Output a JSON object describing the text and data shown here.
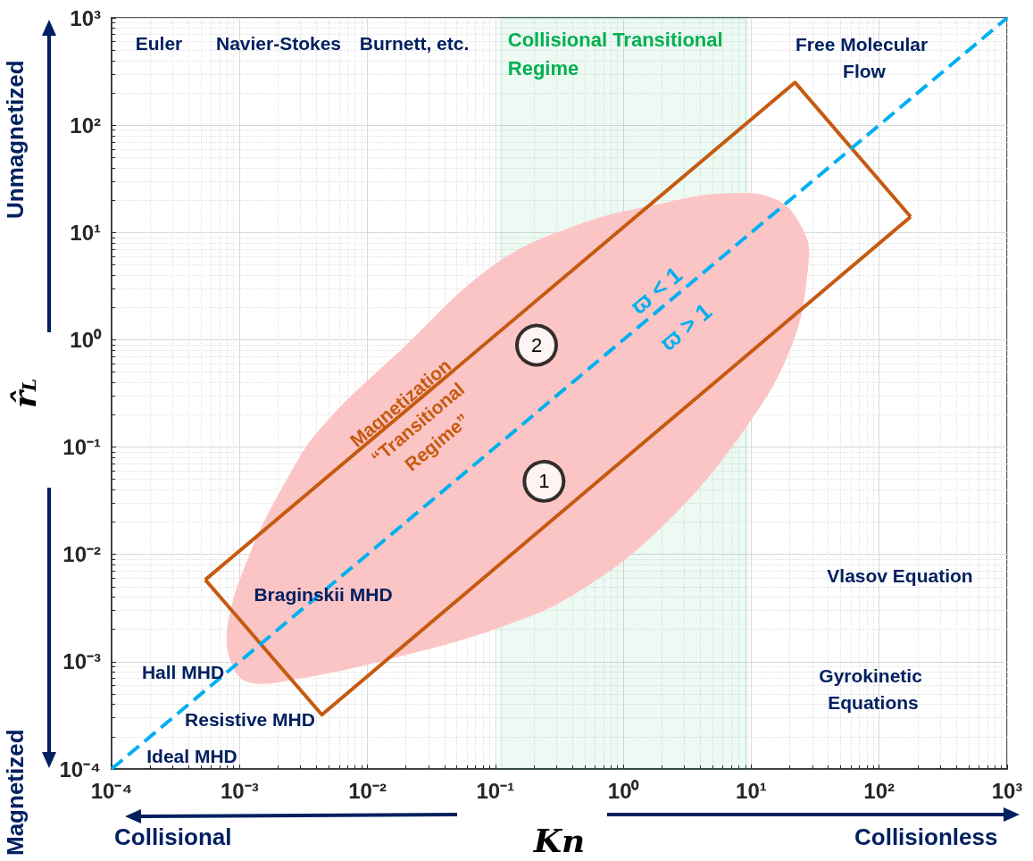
{
  "chart_data": {
    "type": "line",
    "xlabel": "Kn",
    "ylabel": "r̂$_{L}$",
    "xlim": [
      0.0001,
      1000
    ],
    "ylim": [
      0.0001,
      1000
    ],
    "xticks": [
      {
        "value": 0.0001,
        "label": "10⁻⁴"
      },
      {
        "value": 0.001,
        "label": "10⁻³"
      },
      {
        "value": 0.01,
        "label": "10⁻²"
      },
      {
        "value": 0.1,
        "label": "10⁻¹"
      },
      {
        "value": 1,
        "label": "10⁰"
      },
      {
        "value": 10,
        "label": "10¹"
      },
      {
        "value": 100,
        "label": "10²"
      },
      {
        "value": 1000,
        "label": "10³"
      }
    ],
    "yticks": [
      {
        "value": 0.0001,
        "label": "10⁻⁴"
      },
      {
        "value": 0.001,
        "label": "10⁻³"
      },
      {
        "value": 0.01,
        "label": "10⁻²"
      },
      {
        "value": 0.1,
        "label": "10⁻¹"
      },
      {
        "value": 1,
        "label": "10⁰"
      },
      {
        "value": 10,
        "label": "10¹"
      },
      {
        "value": 100,
        "label": "10²"
      },
      {
        "value": 1000,
        "label": "10³"
      }
    ],
    "log": "xy",
    "grid": true,
    "series": [
      {
        "type": "area",
        "color": "#fcc5c5",
        "x": [
          0.00081,
          0.0012,
          0.0023,
          0.0043,
          0.019,
          0.1,
          0.46,
          1.75,
          6,
          16,
          26,
          28,
          21,
          9,
          2,
          0.42,
          0.11,
          0.017,
          0.0028,
          0.0012,
          0.00087
        ],
        "values": [
          0.0022,
          0.01,
          0.048,
          0.15,
          0.84,
          5.1,
          12,
          18,
          23,
          20,
          10,
          5.1,
          0.92,
          0.15,
          0.018,
          0.0043,
          0.0021,
          0.0011,
          0.00069,
          0.00064,
          0.00094
        ]
      },
      {
        "color": "#c55a11",
        "line_style": "solid",
        "marker": "none",
        "x": [
          0.00054,
          22,
          176
        ],
        "values": [
          0.0058,
          250,
          14
        ]
      },
      {
        "color": "#c55a11",
        "line_style": "solid",
        "marker": "none",
        "x": [
          0.00054,
          0.0044,
          176
        ],
        "values": [
          0.0058,
          0.00032,
          14
        ]
      },
      {
        "color": "#00b0f0",
        "line_style": "dashed",
        "marker": "none",
        "x": [
          0.0001,
          1000
        ],
        "values": [
          0.0001,
          1000
        ]
      },
      {
        "type": "scatter",
        "color": "#ffffff",
        "marker": "circle",
        "x": [
          0.21,
          0.24
        ],
        "values": [
          0.89,
          0.048
        ]
      }
    ],
    "bands": [
      {
        "axis": "x",
        "from": 0.11,
        "to": 9.2,
        "label": "Collisional Transitional Regime",
        "color": "#00b050"
      }
    ],
    "annotations": [
      "Unmagnetized",
      "Magnetized",
      "Collisional",
      "Collisionless",
      "Euler",
      "Navier-Stokes",
      "Burnett, etc.",
      "Free Molecular Flow",
      "Vlasov Equation",
      "Gyrokinetic Equations",
      "Braginskii MHD",
      "Hall MHD",
      "Resistive MHD",
      "Ideal MHD",
      "ϖ < 1",
      "ϖ > 1",
      "Magnetization “Transitional Regime”",
      {
        "text": "2",
        "x": 0.21,
        "y": 0.89
      },
      {
        "text": "1",
        "x": 0.24,
        "y": 0.048
      }
    ]
  }
}
